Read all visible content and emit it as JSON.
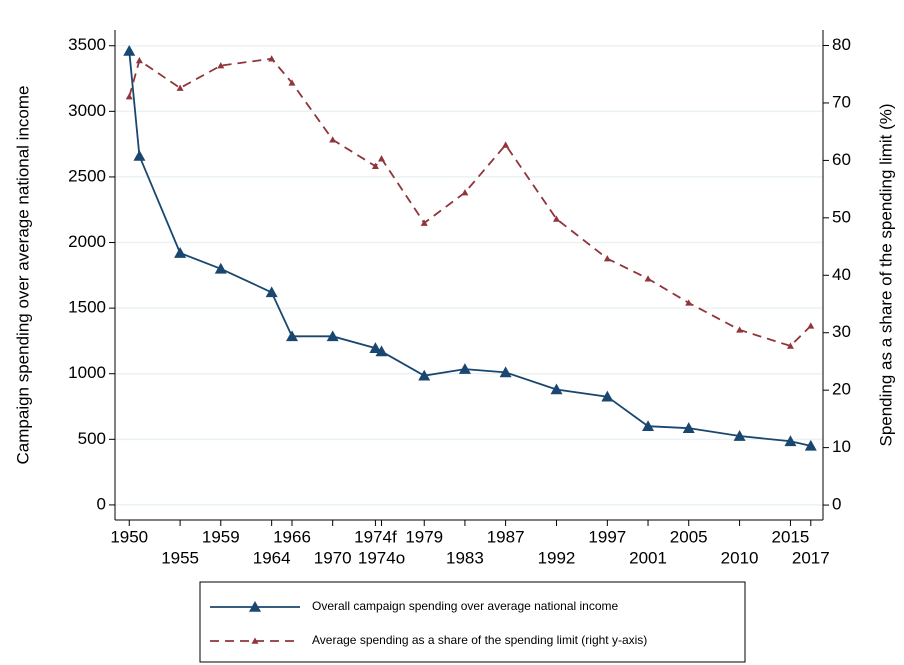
{
  "chart_data": {
    "type": "line",
    "x": [
      1950,
      1951,
      1955,
      1959,
      1964,
      1966,
      1970,
      1974.2,
      1974.8,
      1979,
      1983,
      1987,
      1992,
      1997,
      2001,
      2005,
      2010,
      2015,
      2017
    ],
    "xlim": [
      1948.6,
      2018.2
    ],
    "xticks": [
      {
        "value": 1950,
        "label": "1950"
      },
      {
        "value": 1955,
        "label": "1955"
      },
      {
        "value": 1959,
        "label": "1959"
      },
      {
        "value": 1964,
        "label": "1964"
      },
      {
        "value": 1966,
        "label": "1966"
      },
      {
        "value": 1970,
        "label": "1970"
      },
      {
        "value": 1974.2,
        "label": "1974f"
      },
      {
        "value": 1974.8,
        "label": "1974o"
      },
      {
        "value": 1979,
        "label": "1979"
      },
      {
        "value": 1983,
        "label": "1983"
      },
      {
        "value": 1987,
        "label": "1987"
      },
      {
        "value": 1992,
        "label": "1992"
      },
      {
        "value": 1997,
        "label": "1997"
      },
      {
        "value": 2001,
        "label": "2001"
      },
      {
        "value": 2005,
        "label": "2005"
      },
      {
        "value": 2010,
        "label": "2010"
      },
      {
        "value": 2015,
        "label": "2015"
      },
      {
        "value": 2017,
        "label": "2017"
      }
    ],
    "ylim": [
      -115,
      3620
    ],
    "yticks": [
      0,
      500,
      1000,
      1500,
      2000,
      2500,
      3000,
      3500
    ],
    "y2lim": [
      -2.6,
      82.7
    ],
    "y2ticks": [
      0,
      10,
      20,
      30,
      40,
      50,
      60,
      70,
      80
    ],
    "ylabel": "Campaign spending over average national income",
    "y2label": "Spending as a share of the spending limit (%)",
    "grid": true,
    "series": [
      {
        "name": "Overall campaign spending over average national income",
        "color": "#1a476f",
        "dashed": false,
        "values": [
          3460,
          2660,
          1920,
          1800,
          1620,
          1285,
          1285,
          1195,
          1170,
          985,
          1035,
          1010,
          880,
          825,
          600,
          585,
          525,
          485,
          450
        ]
      },
      {
        "name": "Average spending as a share of the spending limit (right y-axis)",
        "color": "#90353b",
        "dashed": true,
        "axis": "y2",
        "values": [
          71.1,
          77.4,
          72.6,
          76.5,
          77.7,
          73.5,
          63.6,
          59,
          60.3,
          49.1,
          54.4,
          62.7,
          49.8,
          42.9,
          39.4,
          35.2,
          30.5,
          27.7,
          31.2
        ]
      }
    ]
  }
}
